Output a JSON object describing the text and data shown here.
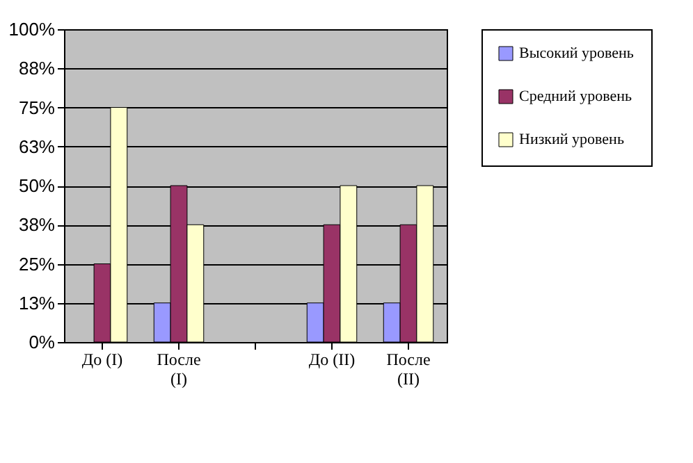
{
  "chart_data": {
    "type": "bar",
    "categories": [
      "До (I)",
      "После (I)",
      null,
      "До (II)",
      "После (II)"
    ],
    "series": [
      {
        "name": "Высокий уровень",
        "color": "#9999ff",
        "values": [
          null,
          12.5,
          null,
          12.5,
          12.5
        ]
      },
      {
        "name": "Средний уровень",
        "color": "#993366",
        "values": [
          25,
          50,
          null,
          37.5,
          37.5
        ]
      },
      {
        "name": "Низкий уровень",
        "color": "#ffffcc",
        "values": [
          75,
          37.5,
          null,
          50,
          50
        ]
      }
    ],
    "ylim": [
      0,
      100
    ],
    "yticks": [
      {
        "value": 0,
        "label": "0%"
      },
      {
        "value": 12.5,
        "label": "13%"
      },
      {
        "value": 25,
        "label": "25%"
      },
      {
        "value": 37.5,
        "label": "38%"
      },
      {
        "value": 50,
        "label": "50%"
      },
      {
        "value": 62.5,
        "label": "63%"
      },
      {
        "value": 75,
        "label": "75%"
      },
      {
        "value": 87.5,
        "label": "88%"
      },
      {
        "value": 100,
        "label": "100%"
      }
    ],
    "grid": "y",
    "legend": "right"
  }
}
